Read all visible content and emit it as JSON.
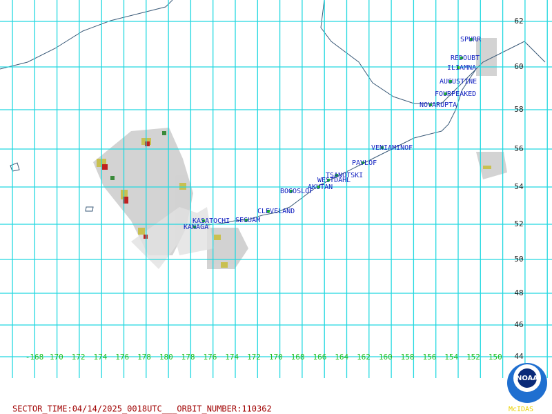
{
  "volcanoes": [
    "SPURR",
    "REDOUBT",
    "ILIAMNA",
    "AUGUSTINE",
    "FOURPEAKED",
    "NOVARUPTA",
    "VENIAMINOF",
    "PAVLOF",
    "TSANOTSKI",
    "WESTDAHL",
    "AKUTAN",
    "BOGOSLOF",
    "CLEVELAND",
    "KASATOCHI",
    "SEGUAM",
    "KANAGA"
  ],
  "latitude_labels": [
    "62",
    "60",
    "58",
    "56",
    "54",
    "52",
    "50",
    "48",
    "46",
    "44"
  ],
  "longitude_labels": [
    "-168",
    "170",
    "172",
    "174",
    "176",
    "178",
    "180",
    "178",
    "176",
    "174",
    "172",
    "170",
    "168",
    "166",
    "164",
    "162",
    "160",
    "158",
    "156",
    "154",
    "152",
    "150"
  ],
  "footer": "SECTOR_TIME:04/14/2025_0018UTC___ORBIT_NUMBER:110362",
  "logo": {
    "emblem": "NOAA",
    "caption": "McIDAS"
  }
}
